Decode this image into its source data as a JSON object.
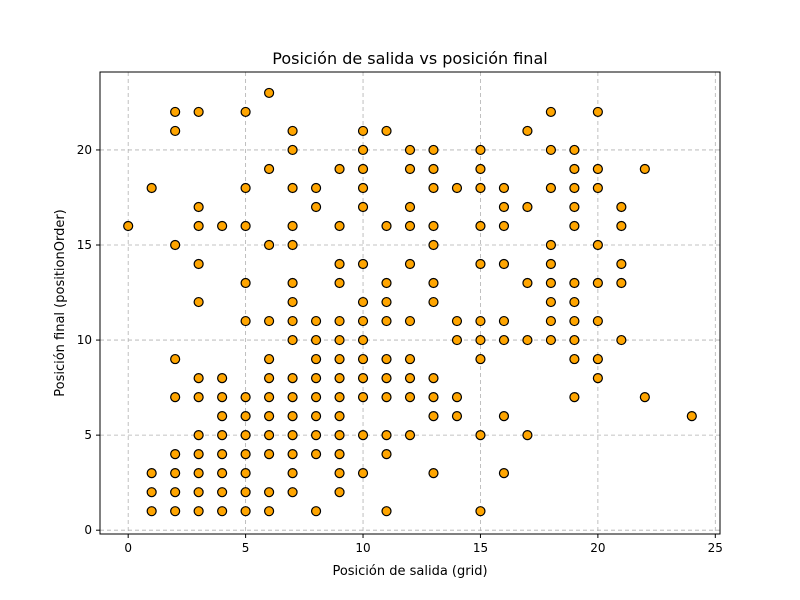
{
  "chart_data": {
    "type": "scatter",
    "title": "Posición de salida vs posición final",
    "xlabel": "Posición de salida (grid)",
    "ylabel": "Posición final (positionOrder)",
    "xlim": [
      -1.2,
      25.2
    ],
    "ylim": [
      -0.2,
      24.1
    ],
    "xticks": [
      0,
      5,
      10,
      15,
      20,
      25
    ],
    "yticks": [
      0,
      5,
      10,
      15,
      20
    ],
    "grid": true,
    "marker_color": "#ffa500",
    "marker_edge_color": "#000000",
    "grid_color": "#b0b0b0",
    "points": [
      [
        0,
        16
      ],
      [
        1,
        1
      ],
      [
        1,
        2
      ],
      [
        1,
        3
      ],
      [
        1,
        18
      ],
      [
        2,
        1
      ],
      [
        2,
        2
      ],
      [
        2,
        3
      ],
      [
        2,
        4
      ],
      [
        2,
        7
      ],
      [
        2,
        9
      ],
      [
        2,
        15
      ],
      [
        2,
        21
      ],
      [
        2,
        22
      ],
      [
        3,
        1
      ],
      [
        3,
        2
      ],
      [
        3,
        3
      ],
      [
        3,
        4
      ],
      [
        3,
        5
      ],
      [
        3,
        7
      ],
      [
        3,
        8
      ],
      [
        3,
        12
      ],
      [
        3,
        14
      ],
      [
        3,
        16
      ],
      [
        3,
        17
      ],
      [
        3,
        22
      ],
      [
        4,
        1
      ],
      [
        4,
        2
      ],
      [
        4,
        3
      ],
      [
        4,
        4
      ],
      [
        4,
        5
      ],
      [
        4,
        6
      ],
      [
        4,
        7
      ],
      [
        4,
        8
      ],
      [
        4,
        16
      ],
      [
        5,
        1
      ],
      [
        5,
        2
      ],
      [
        5,
        3
      ],
      [
        5,
        4
      ],
      [
        5,
        5
      ],
      [
        5,
        6
      ],
      [
        5,
        7
      ],
      [
        5,
        11
      ],
      [
        5,
        13
      ],
      [
        5,
        16
      ],
      [
        5,
        18
      ],
      [
        5,
        22
      ],
      [
        6,
        1
      ],
      [
        6,
        2
      ],
      [
        6,
        4
      ],
      [
        6,
        5
      ],
      [
        6,
        6
      ],
      [
        6,
        7
      ],
      [
        6,
        8
      ],
      [
        6,
        9
      ],
      [
        6,
        11
      ],
      [
        6,
        15
      ],
      [
        6,
        19
      ],
      [
        6,
        23
      ],
      [
        7,
        2
      ],
      [
        7,
        3
      ],
      [
        7,
        4
      ],
      [
        7,
        5
      ],
      [
        7,
        6
      ],
      [
        7,
        7
      ],
      [
        7,
        8
      ],
      [
        7,
        10
      ],
      [
        7,
        11
      ],
      [
        7,
        12
      ],
      [
        7,
        13
      ],
      [
        7,
        15
      ],
      [
        7,
        16
      ],
      [
        7,
        18
      ],
      [
        7,
        20
      ],
      [
        7,
        21
      ],
      [
        8,
        1
      ],
      [
        8,
        4
      ],
      [
        8,
        5
      ],
      [
        8,
        6
      ],
      [
        8,
        7
      ],
      [
        8,
        8
      ],
      [
        8,
        9
      ],
      [
        8,
        10
      ],
      [
        8,
        11
      ],
      [
        8,
        17
      ],
      [
        8,
        18
      ],
      [
        9,
        2
      ],
      [
        9,
        3
      ],
      [
        9,
        4
      ],
      [
        9,
        5
      ],
      [
        9,
        6
      ],
      [
        9,
        7
      ],
      [
        9,
        8
      ],
      [
        9,
        9
      ],
      [
        9,
        10
      ],
      [
        9,
        11
      ],
      [
        9,
        13
      ],
      [
        9,
        14
      ],
      [
        9,
        16
      ],
      [
        9,
        19
      ],
      [
        10,
        3
      ],
      [
        10,
        5
      ],
      [
        10,
        7
      ],
      [
        10,
        8
      ],
      [
        10,
        9
      ],
      [
        10,
        10
      ],
      [
        10,
        11
      ],
      [
        10,
        12
      ],
      [
        10,
        14
      ],
      [
        10,
        17
      ],
      [
        10,
        18
      ],
      [
        10,
        19
      ],
      [
        10,
        20
      ],
      [
        10,
        21
      ],
      [
        11,
        1
      ],
      [
        11,
        4
      ],
      [
        11,
        5
      ],
      [
        11,
        7
      ],
      [
        11,
        8
      ],
      [
        11,
        9
      ],
      [
        11,
        11
      ],
      [
        11,
        12
      ],
      [
        11,
        13
      ],
      [
        11,
        16
      ],
      [
        11,
        21
      ],
      [
        12,
        5
      ],
      [
        12,
        7
      ],
      [
        12,
        8
      ],
      [
        12,
        9
      ],
      [
        12,
        11
      ],
      [
        12,
        14
      ],
      [
        12,
        16
      ],
      [
        12,
        17
      ],
      [
        12,
        19
      ],
      [
        12,
        20
      ],
      [
        13,
        3
      ],
      [
        13,
        6
      ],
      [
        13,
        7
      ],
      [
        13,
        8
      ],
      [
        13,
        12
      ],
      [
        13,
        13
      ],
      [
        13,
        15
      ],
      [
        13,
        16
      ],
      [
        13,
        18
      ],
      [
        13,
        19
      ],
      [
        13,
        20
      ],
      [
        14,
        6
      ],
      [
        14,
        7
      ],
      [
        14,
        10
      ],
      [
        14,
        11
      ],
      [
        14,
        18
      ],
      [
        15,
        1
      ],
      [
        15,
        5
      ],
      [
        15,
        9
      ],
      [
        15,
        10
      ],
      [
        15,
        11
      ],
      [
        15,
        14
      ],
      [
        15,
        16
      ],
      [
        15,
        18
      ],
      [
        15,
        19
      ],
      [
        15,
        20
      ],
      [
        16,
        3
      ],
      [
        16,
        6
      ],
      [
        16,
        10
      ],
      [
        16,
        11
      ],
      [
        16,
        14
      ],
      [
        16,
        16
      ],
      [
        16,
        17
      ],
      [
        16,
        18
      ],
      [
        17,
        5
      ],
      [
        17,
        10
      ],
      [
        17,
        13
      ],
      [
        17,
        17
      ],
      [
        17,
        21
      ],
      [
        18,
        10
      ],
      [
        18,
        11
      ],
      [
        18,
        12
      ],
      [
        18,
        13
      ],
      [
        18,
        14
      ],
      [
        18,
        15
      ],
      [
        18,
        18
      ],
      [
        18,
        20
      ],
      [
        18,
        22
      ],
      [
        19,
        7
      ],
      [
        19,
        9
      ],
      [
        19,
        10
      ],
      [
        19,
        11
      ],
      [
        19,
        12
      ],
      [
        19,
        13
      ],
      [
        19,
        16
      ],
      [
        19,
        17
      ],
      [
        19,
        18
      ],
      [
        19,
        19
      ],
      [
        19,
        20
      ],
      [
        20,
        8
      ],
      [
        20,
        9
      ],
      [
        20,
        11
      ],
      [
        20,
        13
      ],
      [
        20,
        15
      ],
      [
        20,
        18
      ],
      [
        20,
        19
      ],
      [
        20,
        22
      ],
      [
        21,
        10
      ],
      [
        21,
        13
      ],
      [
        21,
        14
      ],
      [
        21,
        16
      ],
      [
        21,
        17
      ],
      [
        22,
        7
      ],
      [
        22,
        19
      ],
      [
        24,
        6
      ]
    ]
  }
}
